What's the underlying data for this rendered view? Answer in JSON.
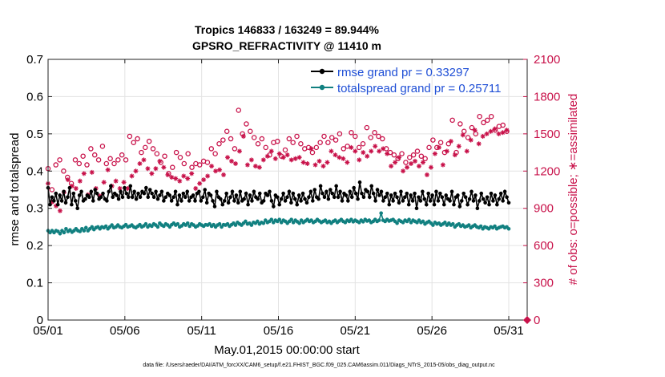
{
  "chart_data": {
    "type": "line",
    "title_line1": "Tropics 146833 / 163249 = 89.944%",
    "title_line2": "GPSRO_REFRACTIVITY @ 11410 m",
    "xlabel": "May.01,2015 00:00:00 start",
    "ylabel_left": "rmse and totalspread",
    "ylabel_right": "# of obs: o=possible; ∗=assimilated",
    "footer": "data file: /Users/raeder/DAI/ATM_forcXX/CAM6_setup/f.e21.FHIST_BGC.f09_025.CAM6assim.011/Diags_NTrS_2015-05/obs_diag_output.nc",
    "xlim": [
      1,
      32.2
    ],
    "ylim_left": [
      0,
      0.7
    ],
    "ylim_right": [
      0,
      2100
    ],
    "x_ticks": [
      1,
      6,
      11,
      16,
      21,
      26,
      31
    ],
    "x_tick_labels": [
      "05/01",
      "05/06",
      "05/11",
      "05/16",
      "05/21",
      "05/26",
      "05/31"
    ],
    "y_ticks_left": [
      0,
      0.1,
      0.2,
      0.3,
      0.4,
      0.5,
      0.6,
      0.7
    ],
    "y_tick_labels_left": [
      "0",
      "0.1",
      "0.2",
      "0.3",
      "0.4",
      "0.5",
      "0.6",
      "0.7"
    ],
    "y_ticks_right": [
      0,
      300,
      600,
      900,
      1200,
      1500,
      1800,
      2100
    ],
    "y_tick_labels_right": [
      "0",
      "300",
      "600",
      "900",
      "1200",
      "1500",
      "1800",
      "2100"
    ],
    "grid": true,
    "legend_position": "top-right",
    "series": [
      {
        "name": "rmse grand pr = 0.33297",
        "axis": "left",
        "color": "#000000",
        "marker": "filled-circle",
        "values": [
          0.355,
          0.31,
          0.33,
          0.32,
          0.34,
          0.31,
          0.335,
          0.32,
          0.345,
          0.315,
          0.33,
          0.355,
          0.31,
          0.34,
          0.32,
          0.3,
          0.335,
          0.345,
          0.32,
          0.325,
          0.335,
          0.33,
          0.345,
          0.32,
          0.35,
          0.34,
          0.325,
          0.33,
          0.34,
          0.325,
          0.32,
          0.345,
          0.36,
          0.33,
          0.34,
          0.335,
          0.325,
          0.345,
          0.33,
          0.355,
          0.34,
          0.33,
          0.36,
          0.33,
          0.345,
          0.325,
          0.34,
          0.33,
          0.345,
          0.34,
          0.355,
          0.33,
          0.35,
          0.34,
          0.33,
          0.345,
          0.325,
          0.335,
          0.345,
          0.32,
          0.33,
          0.34,
          0.335,
          0.32,
          0.33,
          0.345,
          0.31,
          0.335,
          0.32,
          0.34,
          0.33,
          0.345,
          0.32,
          0.33,
          0.335,
          0.32,
          0.34,
          0.345,
          0.32,
          0.33,
          0.35,
          0.315,
          0.34,
          0.335,
          0.32,
          0.305,
          0.345,
          0.33,
          0.325,
          0.31,
          0.32,
          0.34,
          0.315,
          0.33,
          0.345,
          0.32,
          0.335,
          0.315,
          0.345,
          0.32,
          0.325,
          0.34,
          0.31,
          0.335,
          0.32,
          0.345,
          0.33,
          0.325,
          0.34,
          0.315,
          0.32,
          0.34,
          0.335,
          0.345,
          0.32,
          0.305,
          0.335,
          0.33,
          0.31,
          0.325,
          0.34,
          0.32,
          0.33,
          0.345,
          0.315,
          0.34,
          0.325,
          0.31,
          0.335,
          0.32,
          0.34,
          0.325,
          0.315,
          0.33,
          0.345,
          0.32,
          0.35,
          0.33,
          0.325,
          0.36,
          0.34,
          0.33,
          0.345,
          0.325,
          0.35,
          0.34,
          0.33,
          0.36,
          0.33,
          0.345,
          0.32,
          0.34,
          0.335,
          0.32,
          0.345,
          0.33,
          0.355,
          0.34,
          0.325,
          0.37,
          0.34,
          0.33,
          0.35,
          0.345,
          0.33,
          0.36,
          0.34,
          0.32,
          0.35,
          0.335,
          0.345,
          0.32,
          0.33,
          0.34,
          0.31,
          0.335,
          0.32,
          0.34,
          0.33,
          0.315,
          0.345,
          0.32,
          0.33,
          0.34,
          0.31,
          0.335,
          0.32,
          0.34,
          0.3,
          0.33,
          0.32,
          0.345,
          0.325,
          0.31,
          0.34,
          0.32,
          0.335,
          0.31,
          0.345,
          0.32,
          0.34,
          0.33,
          0.31,
          0.335,
          0.325,
          0.32,
          0.345,
          0.31,
          0.33,
          0.335,
          0.305,
          0.32,
          0.34,
          0.33,
          0.31,
          0.325,
          0.345,
          0.32,
          0.335,
          0.3,
          0.32,
          0.34,
          0.325,
          0.315,
          0.33,
          0.31,
          0.34,
          0.32,
          0.335,
          0.31,
          0.325,
          0.34,
          0.32,
          0.345,
          0.33,
          0.315
        ]
      },
      {
        "name": "totalspread grand pr = 0.25711",
        "axis": "left",
        "color": "#118080",
        "marker": "filled-circle",
        "values": [
          0.24,
          0.235,
          0.24,
          0.235,
          0.24,
          0.238,
          0.232,
          0.24,
          0.235,
          0.245,
          0.238,
          0.242,
          0.236,
          0.24,
          0.245,
          0.24,
          0.238,
          0.245,
          0.24,
          0.248,
          0.24,
          0.245,
          0.25,
          0.243,
          0.248,
          0.25,
          0.245,
          0.25,
          0.248,
          0.252,
          0.245,
          0.25,
          0.255,
          0.248,
          0.25,
          0.255,
          0.25,
          0.248,
          0.252,
          0.256,
          0.25,
          0.252,
          0.255,
          0.25,
          0.248,
          0.252,
          0.256,
          0.25,
          0.253,
          0.258,
          0.25,
          0.255,
          0.252,
          0.258,
          0.255,
          0.25,
          0.26,
          0.255,
          0.252,
          0.258,
          0.255,
          0.25,
          0.256,
          0.26,
          0.255,
          0.258,
          0.25,
          0.253,
          0.258,
          0.255,
          0.26,
          0.252,
          0.258,
          0.255,
          0.25,
          0.253,
          0.258,
          0.255,
          0.252,
          0.256,
          0.255,
          0.258,
          0.252,
          0.256,
          0.25,
          0.255,
          0.258,
          0.25,
          0.256,
          0.255,
          0.258,
          0.252,
          0.256,
          0.26,
          0.255,
          0.262,
          0.258,
          0.255,
          0.26,
          0.265,
          0.258,
          0.26,
          0.255,
          0.262,
          0.26,
          0.265,
          0.258,
          0.262,
          0.26,
          0.268,
          0.262,
          0.265,
          0.27,
          0.262,
          0.268,
          0.265,
          0.27,
          0.262,
          0.268,
          0.265,
          0.26,
          0.265,
          0.27,
          0.262,
          0.268,
          0.264,
          0.26,
          0.268,
          0.262,
          0.266,
          0.27,
          0.265,
          0.268,
          0.262,
          0.265,
          0.27,
          0.266,
          0.262,
          0.265,
          0.268,
          0.262,
          0.265,
          0.26,
          0.265,
          0.268,
          0.262,
          0.266,
          0.27,
          0.265,
          0.262,
          0.268,
          0.265,
          0.27,
          0.264,
          0.268,
          0.265,
          0.262,
          0.268,
          0.264,
          0.27,
          0.266,
          0.268,
          0.262,
          0.265,
          0.27,
          0.265,
          0.268,
          0.287,
          0.268,
          0.265,
          0.27,
          0.266,
          0.268,
          0.27,
          0.265,
          0.26,
          0.268,
          0.265,
          0.262,
          0.268,
          0.265,
          0.27,
          0.262,
          0.268,
          0.265,
          0.262,
          0.268,
          0.262,
          0.265,
          0.258,
          0.262,
          0.265,
          0.26,
          0.255,
          0.262,
          0.258,
          0.26,
          0.255,
          0.258,
          0.262,
          0.255,
          0.26,
          0.255,
          0.258,
          0.25,
          0.255,
          0.258,
          0.252,
          0.255,
          0.25,
          0.252,
          0.255,
          0.248,
          0.252,
          0.255,
          0.25,
          0.248,
          0.252,
          0.245,
          0.25,
          0.248,
          0.245,
          0.25,
          0.248,
          0.252,
          0.245,
          0.248,
          0.25,
          0.252,
          0.248,
          0.25,
          0.245
        ]
      },
      {
        "name": "obs possible",
        "axis": "right",
        "color": "#c8124a",
        "marker": "open-circle",
        "values": [
          1220,
          1380,
          1050,
          1180,
          1250,
          1160,
          1290,
          1080,
          1200,
          1260,
          1150,
          1340,
          1100,
          1220,
          1290,
          1180,
          1260,
          1350,
          1320,
          1430,
          1250,
          1440,
          1380,
          1510,
          1330,
          1480,
          1290,
          1250,
          1400,
          1310,
          1260,
          1240,
          1300,
          1180,
          1260,
          1340,
          1290,
          1410,
          1330,
          1280,
          1290,
          1450,
          1480,
          1380,
          1430,
          1520,
          1460,
          1290,
          1350,
          1500,
          1390,
          1470,
          1440,
          1290,
          1380,
          1240,
          1340,
          1190,
          1270,
          1380,
          1320,
          1260,
          1180,
          1300,
          1230,
          1290,
          1350,
          1240,
          1310,
          1380,
          1260,
          1200,
          1340,
          1280,
          1230,
          1180,
          1260,
          1320,
          1250,
          1190,
          1280,
          1340,
          1270,
          1210,
          1380,
          1300,
          1340,
          1290,
          1420,
          1370,
          1450,
          1380,
          1520,
          1600,
          1460,
          1550,
          1380,
          1480,
          1690,
          1590,
          1500,
          1440,
          1580,
          1460,
          1520,
          1390,
          1470,
          1550,
          1420,
          1380,
          1460,
          1520,
          1390,
          1430,
          1330,
          1380,
          1430,
          1360,
          1440,
          1390,
          1320,
          1410,
          1370,
          1310,
          1460,
          1380,
          1430,
          1340,
          1480,
          1390,
          1420,
          1510,
          1380,
          1460,
          1390,
          1420,
          1350,
          1480,
          1390,
          1510,
          1430,
          1360,
          1480,
          1520,
          1430,
          1400,
          1470,
          1390,
          1450,
          1420,
          1500,
          1460,
          1380,
          1470,
          1400,
          1440,
          1510,
          1450,
          1480,
          1520,
          1390,
          1460,
          1420,
          1490,
          1550,
          1430,
          1470,
          1400,
          1510,
          1440,
          1480,
          1390,
          1460,
          1420,
          1380,
          1440,
          1350,
          1400,
          1330,
          1370,
          1300,
          1390,
          1340,
          1410,
          1270,
          1350,
          1310,
          1240,
          1330,
          1290,
          1360,
          1250,
          1320,
          1380,
          1300,
          1270,
          1390,
          1340,
          1450,
          1310,
          1390,
          1260,
          1430,
          1480,
          1350,
          1540,
          1420,
          1380,
          1610,
          1520,
          1350,
          1460,
          1580,
          1490,
          1520,
          1410,
          1470,
          1610,
          1550,
          1390,
          1500,
          1560,
          1640,
          1520,
          1590,
          1540,
          1610,
          1560,
          1640,
          1580,
          1530,
          1620,
          1560,
          1500,
          1570,
          1540,
          1520,
          1580
        ]
      },
      {
        "name": "obs assimilated",
        "axis": "right",
        "color": "#c8124a",
        "marker": "asterisk",
        "values": [
          1100,
          1170,
          950,
          1010,
          920,
          1080,
          880,
          1120,
          1030,
          1060,
          1130,
          1020,
          1080,
          1110,
          1060,
          1170,
          1120,
          1230,
          1180,
          1250,
          1010,
          1120,
          1190,
          1170,
          1060,
          1280,
          1000,
          1050,
          1110,
          1180,
          1210,
          1150,
          1080,
          1260,
          1120,
          1180,
          1060,
          1240,
          1110,
          1190,
          1060,
          1250,
          1160,
          1290,
          1200,
          1330,
          1260,
          1200,
          1290,
          1180,
          1220,
          1260,
          1180,
          1320,
          1220,
          1190,
          1280,
          1140,
          1230,
          1060,
          1170,
          1210,
          1150,
          1090,
          1140,
          1190,
          1120,
          1090,
          1160,
          1210,
          1140,
          1080,
          1180,
          1110,
          1060,
          1150,
          1100,
          1020,
          1130,
          1080,
          1160,
          1120,
          1240,
          1180,
          1200,
          1130,
          1210,
          1250,
          1170,
          1200,
          1310,
          1220,
          1280,
          1170,
          1260,
          1410,
          1360,
          1290,
          1480,
          1360,
          1250,
          1320,
          1290,
          1370,
          1240,
          1300,
          1230,
          1350,
          1290,
          1210,
          1320,
          1280,
          1360,
          1250,
          1300,
          1260,
          1340,
          1220,
          1310,
          1280,
          1330,
          1250,
          1290,
          1360,
          1300,
          1240,
          1310,
          1350,
          1270,
          1320,
          1260,
          1300,
          1380,
          1290,
          1250,
          1330,
          1280,
          1300,
          1240,
          1350,
          1270,
          1310,
          1360,
          1290,
          1330,
          1260,
          1310,
          1380,
          1300,
          1340,
          1270,
          1350,
          1390,
          1300,
          1360,
          1320,
          1290,
          1410,
          1350,
          1380,
          1320,
          1430,
          1360,
          1330,
          1400,
          1300,
          1360,
          1290,
          1380,
          1260,
          1340,
          1300,
          1240,
          1330,
          1270,
          1220,
          1310,
          1250,
          1200,
          1290,
          1230,
          1180,
          1260,
          1210,
          1280,
          1160,
          1240,
          1190,
          1270,
          1220,
          1170,
          1300,
          1230,
          1260,
          1340,
          1280,
          1390,
          1310,
          1250,
          1420,
          1360,
          1300,
          1440,
          1380,
          1330,
          1460,
          1400,
          1350,
          1490,
          1410,
          1360,
          1520,
          1450,
          1400,
          1530,
          1460,
          1420,
          1550,
          1480,
          1440,
          1500,
          1460,
          1520,
          1480,
          1540,
          1470,
          1500,
          1460,
          1510,
          1480,
          1530,
          1490
        ]
      }
    ],
    "endpoint_marker": {
      "x": 32.2,
      "y_right": 0
    }
  }
}
